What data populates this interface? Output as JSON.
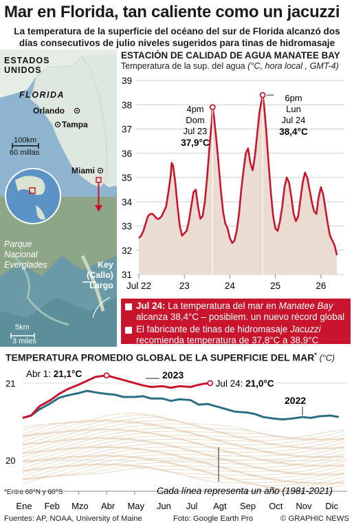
{
  "header": {
    "title": "Mar en Florida, tan caliente como un jacuzzi",
    "subtitle_line1": "La temperatura de la superficie del océano del sur de Florida alcanzó dos",
    "subtitle_line2": "días consecutivos de julio niveles sugeridos para tinas de hidromasaje"
  },
  "map": {
    "country_line1": "ESTADOS",
    "country_line2": "UNIDOS",
    "state": "FLORIDA",
    "cities": [
      "Orlando",
      "Tampa",
      "Miami"
    ],
    "scale_km": "100km",
    "scale_mi": "60 millas",
    "park_line1": "Parque",
    "park_line2": "Nacional",
    "park_line3": "Everglades",
    "key_line1": "Key",
    "key_line2": "(Callo)",
    "key_line3": "Largo",
    "zoom_km": "5km",
    "zoom_mi": "3 miles",
    "colors": {
      "land": "#dfe8e0",
      "water": "#8fb4cf",
      "satellite": "#7a9a86"
    }
  },
  "station": {
    "title": "ESTACIÓN DE CALIDAD DE AGUA MANATEE BAY",
    "subtitle_plain": "Temperatura de la sup. del agua",
    "subtitle_italic": "(°C, hora local , GMT-4)"
  },
  "notes": {
    "n1_date": "Jul 24:",
    "n1_a": " La temperatura del mar en ",
    "n1_place": "Manatee Bay",
    "n1_b": "alcanza 38,4°C – posiblem. un nuevo récord global",
    "n2_a": "El fabricante de tinas de hidromasaje ",
    "n2_brand": "Jacuzzi",
    "n2_b": "recomienda temperatura de 37,8°C a 38,9°C"
  },
  "global": {
    "title": "TEMPERATURA PROMEDIO GLOBAL DE LA SUPERFICIE DEL MAR",
    "title_star": "*",
    "unit": "(°C)",
    "footnote": "*Entre 60°N y 60°S",
    "caption": "Cada línea representa un año (1981-2021)"
  },
  "footer": {
    "sources": "Fuentes: AP, NOAA, University of Maine",
    "photo": "Foto: Google Earth Pro",
    "credit": "© GRAPHIC NEWS"
  },
  "chart_data": [
    {
      "type": "area",
      "title": "ESTACIÓN DE CALIDAD DE AGUA MANATEE BAY",
      "ylabel": "Temperatura de la sup. del agua (°C, hora local , GMT-4)",
      "ylim": [
        31,
        39
      ],
      "yticks": [
        "31",
        "32",
        "33",
        "34",
        "35",
        "36",
        "37",
        "38",
        "39"
      ],
      "xlim": [
        22,
        26.5
      ],
      "xticks": [
        22,
        23,
        24,
        25,
        26
      ],
      "xtick_labels": [
        "Jul 22",
        "23",
        "24",
        "25",
        "26"
      ],
      "color": "#c8142c",
      "fill": "#eadcd0",
      "series": [
        {
          "x": [
            22.0,
            22.05,
            22.1,
            22.15,
            22.2,
            22.25,
            22.3,
            22.35,
            22.4,
            22.45,
            22.5,
            22.55,
            22.6,
            22.65,
            22.7,
            22.72,
            22.75,
            22.8,
            22.85,
            22.9,
            22.95,
            23.0,
            23.05,
            23.1,
            23.15,
            23.2,
            23.25,
            23.3,
            23.35,
            23.4,
            23.45,
            23.5,
            23.55,
            23.6,
            23.62,
            23.65,
            23.7,
            23.75,
            23.8,
            23.85,
            23.9,
            23.95,
            24.0,
            24.05,
            24.1,
            24.15,
            24.2,
            24.25,
            24.3,
            24.35,
            24.4,
            24.45,
            24.5,
            24.55,
            24.6,
            24.65,
            24.7,
            24.72,
            24.75,
            24.8,
            24.85,
            24.9,
            24.95,
            25.0,
            25.05,
            25.1,
            25.15,
            25.2,
            25.25,
            25.3,
            25.35,
            25.4,
            25.45,
            25.5,
            25.55,
            25.6,
            25.65,
            25.7,
            25.75,
            25.8,
            25.85,
            25.9,
            25.95,
            26.0,
            26.05,
            26.1,
            26.15,
            26.2,
            26.25,
            26.3,
            26.35
          ],
          "values": [
            32.5,
            32.6,
            32.8,
            33.1,
            33.4,
            33.5,
            33.5,
            33.4,
            33.3,
            33.3,
            33.4,
            33.6,
            33.8,
            34.4,
            35.1,
            35.6,
            35.5,
            34.8,
            33.8,
            33.0,
            32.6,
            32.7,
            32.8,
            33.2,
            33.8,
            34.4,
            34.5,
            33.8,
            33.3,
            33.4,
            34.0,
            35.0,
            36.2,
            37.3,
            37.9,
            37.5,
            36.6,
            35.6,
            34.5,
            33.6,
            33.1,
            32.9,
            32.5,
            32.3,
            32.4,
            32.8,
            33.5,
            34.5,
            35.3,
            36.0,
            36.2,
            35.6,
            35.3,
            35.9,
            36.8,
            37.7,
            38.2,
            38.4,
            38.0,
            36.9,
            35.6,
            34.4,
            33.4,
            32.9,
            32.8,
            33.2,
            33.8,
            34.6,
            35.0,
            34.8,
            34.2,
            33.5,
            33.2,
            33.4,
            34.1,
            34.8,
            35.2,
            35.0,
            34.5,
            34.0,
            33.6,
            33.5,
            34.2,
            34.6,
            34.3,
            33.7,
            33.1,
            32.6,
            32.4,
            32.2,
            31.8
          ]
        }
      ],
      "annotations": [
        {
          "x": 23.62,
          "y": 37.9,
          "line1": "4pm",
          "line2": "Dom",
          "line3": "Jul 23",
          "value": "37,9°C"
        },
        {
          "x": 24.72,
          "y": 38.4,
          "line1": "6pm",
          "line2": "Lun",
          "line3": "Jul 24",
          "value": "38,4°C"
        }
      ]
    },
    {
      "type": "line",
      "title": "TEMPERATURA PROMEDIO GLOBAL DE LA SUPERFICIE DEL MAR",
      "ylim": [
        19.6,
        21.15
      ],
      "yticks": [
        "20",
        "21"
      ],
      "xticks": [
        "Ene",
        "Feb",
        "Mzo",
        "Abr",
        "May",
        "Jun",
        "Jul",
        "Agt",
        "Sep",
        "Oct",
        "Nov",
        "Dic"
      ],
      "series": [
        {
          "name": "2023",
          "color": "#c8142c",
          "x": [
            0,
            0.3,
            0.6,
            1.0,
            1.3,
            1.6,
            2.0,
            2.3,
            2.6,
            3.0,
            3.3,
            3.6,
            4.0,
            4.3,
            4.6,
            5.0,
            5.3,
            5.6,
            6.0,
            6.2,
            6.45,
            6.7
          ],
          "values": [
            20.55,
            20.58,
            20.7,
            20.78,
            20.86,
            20.92,
            20.98,
            21.03,
            21.08,
            21.1,
            21.07,
            21.04,
            21.0,
            20.97,
            20.95,
            20.96,
            20.94,
            20.96,
            20.95,
            20.97,
            20.99,
            21.0
          ]
        },
        {
          "name": "2022",
          "color": "#2b6e84",
          "x": [
            0,
            0.3,
            0.6,
            1.0,
            1.3,
            1.6,
            2.0,
            2.3,
            2.6,
            3.0,
            3.3,
            3.6,
            4.0,
            4.3,
            4.6,
            5.0,
            5.3,
            5.6,
            6.0,
            6.3,
            6.6,
            7.0,
            7.3,
            7.6,
            8.0,
            8.3,
            8.6,
            9.0,
            9.3,
            9.6,
            10.0,
            10.3,
            10.6,
            11.0,
            11.3
          ],
          "values": [
            20.55,
            20.58,
            20.66,
            20.74,
            20.81,
            20.84,
            20.87,
            20.9,
            20.88,
            20.86,
            20.85,
            20.82,
            20.82,
            20.83,
            20.8,
            20.8,
            20.77,
            20.79,
            20.78,
            20.72,
            20.73,
            20.69,
            20.66,
            20.63,
            20.62,
            20.6,
            20.56,
            20.54,
            20.53,
            20.54,
            20.56,
            20.55,
            20.57,
            20.58,
            20.56
          ]
        }
      ],
      "annotations": [
        {
          "label": "Abr 1:",
          "value": "21,1°C"
        },
        {
          "label": "Jul 24:",
          "value": "21,0°C"
        }
      ]
    }
  ]
}
